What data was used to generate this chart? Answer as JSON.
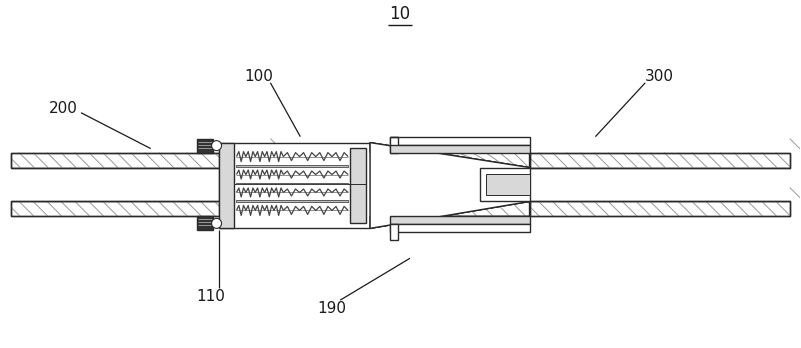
{
  "bg_color": "#ffffff",
  "lc": "#2a2a2a",
  "lc_gray": "#aaaaaa",
  "hatch_lines_color": "#888888",
  "fill_light_gray": "#d8d8d8",
  "fill_mid_gray": "#b0b0b0",
  "fill_dark": "#404040",
  "title": "10",
  "label_200": "200",
  "label_100": "100",
  "label_300": "300",
  "label_110": "110",
  "label_190": "190",
  "label_fontsize": 11,
  "title_fontsize": 12
}
